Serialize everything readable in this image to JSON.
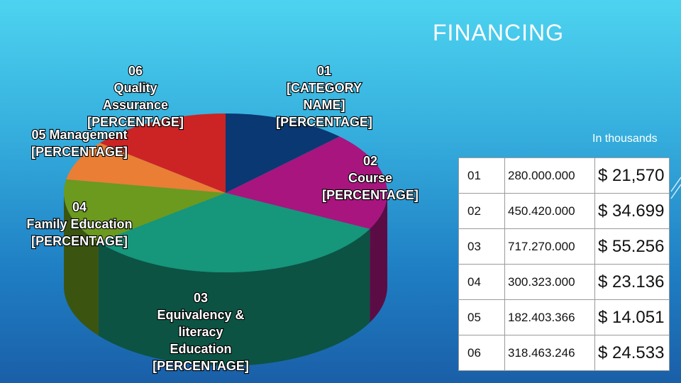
{
  "title": "FINANCING",
  "units_note": "In thousands",
  "chart_data": {
    "type": "pie",
    "slices": [
      {
        "id": "01",
        "lines": [
          "01",
          "[CATEGORY",
          "NAME]",
          "[PERCENTAGE]"
        ],
        "value": 21570,
        "color": "#0a3872"
      },
      {
        "id": "02",
        "lines": [
          "02",
          "Course",
          "[PERCENTAGE]"
        ],
        "value": 34699,
        "color": "#a8157e"
      },
      {
        "id": "03",
        "lines": [
          "03",
          "Equivalency &",
          "literacy",
          "Education",
          "[PERCENTAGE]"
        ],
        "value": 55256,
        "color": "#16967a"
      },
      {
        "id": "04",
        "lines": [
          "04",
          "Family Education",
          "[PERCENTAGE]"
        ],
        "value": 23136,
        "color": "#6b9a1e"
      },
      {
        "id": "05",
        "lines": [
          "05 Management",
          "[PERCENTAGE]"
        ],
        "value": 14051,
        "color": "#ea7e35"
      },
      {
        "id": "06",
        "lines": [
          "06",
          "Quality",
          "Assurance",
          "[PERCENTAGE]"
        ],
        "value": 24533,
        "color": "#cc2424"
      }
    ]
  },
  "table": {
    "rows": [
      {
        "id": "01",
        "amount": "280.000.000",
        "usd": "$ 21,570"
      },
      {
        "id": "02",
        "amount": "450.420.000",
        "usd": "$ 34.699"
      },
      {
        "id": "03",
        "amount": "717.270.000",
        "usd": "$ 55.256"
      },
      {
        "id": "04",
        "amount": "300.323.000",
        "usd": "$ 23.136"
      },
      {
        "id": "05",
        "amount": "182.403.366",
        "usd": "$ 14.051"
      },
      {
        "id": "06",
        "amount": "318.463.246",
        "usd": "$ 24.533"
      }
    ]
  }
}
